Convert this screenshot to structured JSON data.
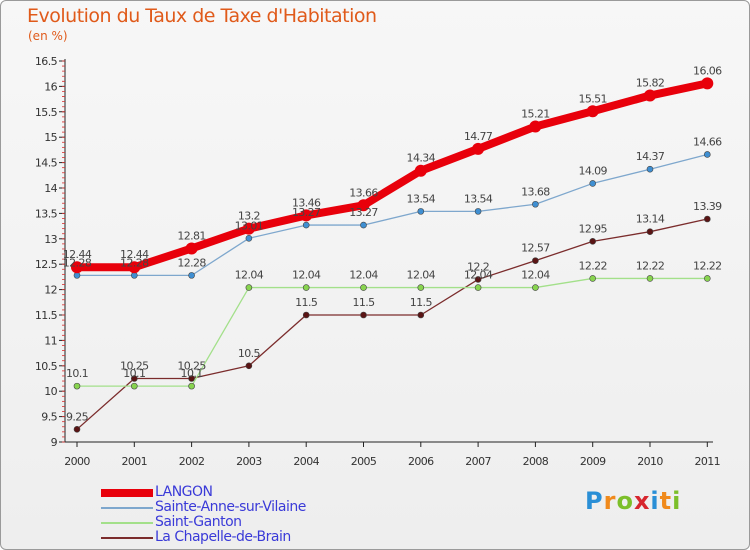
{
  "title": "Evolution du Taux de Taxe d'Habitation",
  "subtitle": "(en %)",
  "logo": {
    "text": "Proxiti",
    "letters": [
      {
        "ch": "P",
        "color": "#2a8fd6"
      },
      {
        "ch": "r",
        "color": "#f08a1c"
      },
      {
        "ch": "o",
        "color": "#7cbf2a"
      },
      {
        "ch": "x",
        "color": "#d7262e"
      },
      {
        "ch": "i",
        "color": "#2a8fd6"
      },
      {
        "ch": "t",
        "color": "#f08a1c"
      },
      {
        "ch": "i",
        "color": "#7cbf2a"
      }
    ]
  },
  "chart_data": {
    "type": "line",
    "x": [
      "2000",
      "2001",
      "2002",
      "2003",
      "2004",
      "2005",
      "2006",
      "2007",
      "2008",
      "2009",
      "2010",
      "2011"
    ],
    "ylim": [
      9,
      16.5
    ],
    "yticks": [
      "9",
      "9.5",
      "10",
      "10.5",
      "11",
      "11.5",
      "12",
      "12.5",
      "13",
      "13.5",
      "14",
      "14.5",
      "15",
      "15.5",
      "16",
      "16.5"
    ],
    "grid": false,
    "legend_position": "bottom-left",
    "series": [
      {
        "name": "LANGON",
        "color": "#e8000b",
        "point_color": "#e8000b",
        "values": [
          12.44,
          12.44,
          12.81,
          13.2,
          13.46,
          13.66,
          14.34,
          14.77,
          15.21,
          15.51,
          15.82,
          16.06
        ],
        "labels": [
          "12.44",
          "12.44",
          "12.81",
          "13.2",
          "13.46",
          "13.66",
          "14.34",
          "14.77",
          "15.21",
          "15.51",
          "15.82",
          "16.06"
        ]
      },
      {
        "name": "Sainte-Anne-sur-Vilaine",
        "color": "#7ea7cd",
        "point_color": "#3f8fd2",
        "values": [
          12.28,
          12.28,
          12.28,
          13.01,
          13.27,
          13.27,
          13.54,
          13.54,
          13.68,
          14.09,
          14.37,
          14.66
        ],
        "labels": [
          "12.28",
          "12.28",
          "12.28",
          "13.01",
          "13.27",
          "13.27",
          "13.54",
          "13.54",
          "13.68",
          "14.09",
          "14.37",
          "14.66"
        ]
      },
      {
        "name": "Saint-Ganton",
        "color": "#a3e08a",
        "point_color": "#88d44f",
        "values": [
          10.1,
          10.1,
          10.1,
          12.04,
          12.04,
          12.04,
          12.04,
          12.04,
          12.04,
          12.22,
          12.22,
          12.22
        ],
        "labels": [
          "10.1",
          "10.1",
          "10.1",
          "12.04",
          "12.04",
          "12.04",
          "12.04",
          "12.04",
          "12.04",
          "12.22",
          "12.22",
          "12.22"
        ]
      },
      {
        "name": "La Chapelle-de-Brain",
        "color": "#7b2c2c",
        "point_color": "#5a1414",
        "values": [
          9.25,
          10.25,
          10.25,
          10.5,
          11.5,
          11.5,
          11.5,
          12.2,
          12.57,
          12.95,
          13.14,
          13.39
        ],
        "labels": [
          "9.25",
          "10.25",
          "10.25",
          "10.5",
          "11.5",
          "11.5",
          "11.5",
          "12.2",
          "12.57",
          "12.95",
          "13.14",
          "13.39"
        ]
      }
    ]
  }
}
